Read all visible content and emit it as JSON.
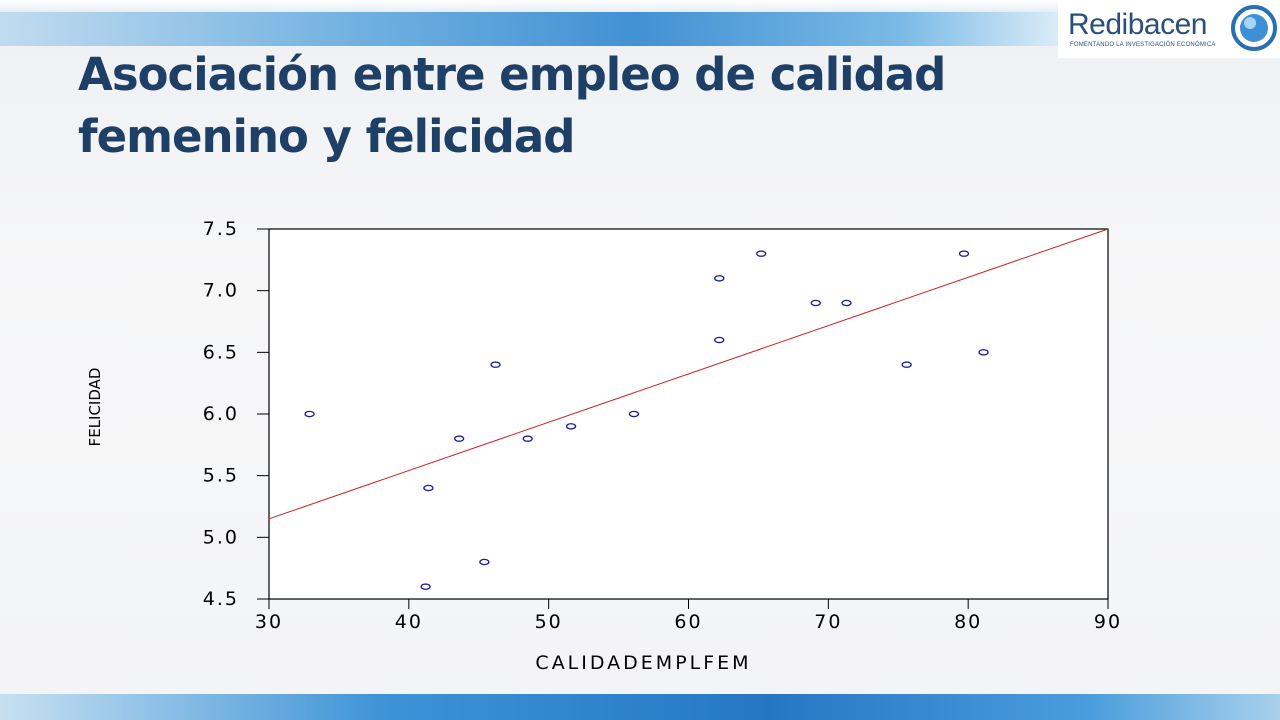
{
  "slide": {
    "title_line1": "Asociación entre empleo de calidad",
    "title_line2": "femenino y felicidad"
  },
  "logo": {
    "name": "Redibacen",
    "tagline": "FOMENTANDO LA INVESTIGACIÓN ECONÓMICA",
    "icon": "globe-icon"
  },
  "colors": {
    "title": "#1e3f66",
    "points": "#1a1a9c",
    "fit_line": "#cc2222",
    "axis": "#000000"
  },
  "chart_data": {
    "type": "scatter",
    "xlabel": "CALIDADEMPLFEM",
    "ylabel": "FELICIDAD",
    "xlim": [
      30,
      90
    ],
    "ylim": [
      4.5,
      7.5
    ],
    "x_ticks": [
      "30",
      "40",
      "50",
      "60",
      "70",
      "80",
      "90"
    ],
    "y_ticks": [
      "4.5",
      "5.0",
      "5.5",
      "6.0",
      "6.5",
      "7.0",
      "7.5"
    ],
    "grid": false,
    "points": [
      {
        "x": 32.9,
        "y": 6.0
      },
      {
        "x": 41.2,
        "y": 4.6
      },
      {
        "x": 41.4,
        "y": 5.4
      },
      {
        "x": 43.6,
        "y": 5.8
      },
      {
        "x": 45.4,
        "y": 4.8
      },
      {
        "x": 46.2,
        "y": 6.4
      },
      {
        "x": 48.5,
        "y": 5.8
      },
      {
        "x": 51.6,
        "y": 5.9
      },
      {
        "x": 56.1,
        "y": 6.0
      },
      {
        "x": 62.2,
        "y": 7.1
      },
      {
        "x": 62.2,
        "y": 6.6
      },
      {
        "x": 65.2,
        "y": 7.3
      },
      {
        "x": 69.1,
        "y": 6.9
      },
      {
        "x": 71.3,
        "y": 6.9
      },
      {
        "x": 75.6,
        "y": 6.4
      },
      {
        "x": 79.7,
        "y": 7.3
      },
      {
        "x": 81.1,
        "y": 6.5
      }
    ],
    "fit_line": {
      "x": [
        30,
        90
      ],
      "y": [
        5.15,
        7.5
      ]
    }
  }
}
